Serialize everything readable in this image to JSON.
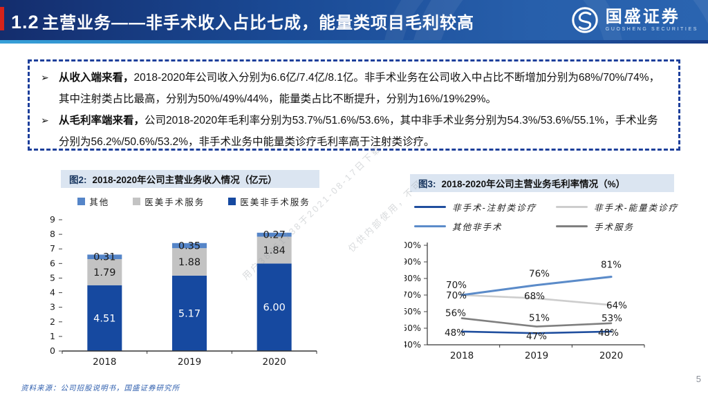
{
  "header": {
    "section_number": "1.2",
    "title": "主营业务——非手术收入占比七成，能量类项目毛利较高",
    "logo_cn": "国盛证券",
    "logo_en": "GUOSHENG SECURITIES"
  },
  "summary_box": {
    "bullet_marker": "➢",
    "bullets": [
      {
        "lead": "从收入端来看，",
        "text": "2018-2020年公司收入分别为6.6亿/7.4亿/8.1亿。非手术业务在公司收入中占比不断增加分别为68%/70%/74%，其中注射类占比最高，分别为50%/49%/44%，能量类占比不断提升，分别为16%/19%29%。"
      },
      {
        "lead": "从毛利率端来看，",
        "text": "公司2018-2020年毛利率分别为53.7%/51.6%/53.6%，其中非手术业务分别为54.3%/53.6%/55.1%，手术业务分别为56.2%/50.6%/53.2%，非手术业务中能量类诊疗毛利率高于注射类诊疗。"
      }
    ]
  },
  "chart_data": [
    {
      "type": "bar",
      "stacked": true,
      "figure_label": "图2:",
      "title": "2018-2020年公司主营业务收入情况（亿元）",
      "unit": "亿元",
      "categories": [
        "2018",
        "2019",
        "2020"
      ],
      "series": [
        {
          "name": "医美非手术服务",
          "color": "#1649A0",
          "label_color": "#ffffff",
          "values": [
            4.51,
            5.17,
            6.0
          ]
        },
        {
          "name": "医美手术服务",
          "color": "#C3C3C3",
          "label_color": "#1a1a1a",
          "values": [
            1.79,
            1.88,
            1.84
          ]
        },
        {
          "name": "其他",
          "color": "#5585C8",
          "label_color": "#1a1a1a",
          "values": [
            0.31,
            0.35,
            0.27
          ]
        }
      ],
      "legend_order": [
        "其他",
        "医美手术服务",
        "医美非手术服务"
      ],
      "ylim": [
        0,
        9
      ],
      "ytick_step": 1,
      "grid": false,
      "legend_position": "top"
    },
    {
      "type": "line",
      "figure_label": "图3:",
      "title": "2018-2020年公司主营业务毛利率情况（%）",
      "unit": "%",
      "categories": [
        "2018",
        "2019",
        "2020"
      ],
      "series": [
        {
          "name": "非手术-注射类诊疗",
          "color": "#1F4E9E",
          "values": [
            48,
            47,
            48
          ]
        },
        {
          "name": "非手术-能量类诊疗",
          "color": "#CDCDCD",
          "values": [
            70,
            68,
            64
          ]
        },
        {
          "name": "其他非手术",
          "color": "#5B8BC9",
          "values": [
            70,
            76,
            81
          ]
        },
        {
          "name": "手术服务",
          "color": "#7F7F7F",
          "values": [
            56,
            51,
            53
          ]
        }
      ],
      "ylim": [
        40,
        100
      ],
      "ytick_step": 10,
      "ytick_suffix": "%",
      "value_suffix": "%",
      "grid": false,
      "legend_position": "top"
    }
  ],
  "watermark": {
    "line1": "用户38851738于2021-08-17日下载",
    "line2": "仅供内部使用，不可"
  },
  "footer": {
    "source": "资料来源：公司招股说明书，国盛证券研究所",
    "page_number": "5"
  },
  "colors": {
    "header_dark": "#142D6D",
    "header_light": "#2A64B0",
    "accent_red": "#D6231B",
    "box_border": "#1D3F9B",
    "fig_title_bg": "#DBE5F1",
    "source_text": "#2F5FAE"
  }
}
